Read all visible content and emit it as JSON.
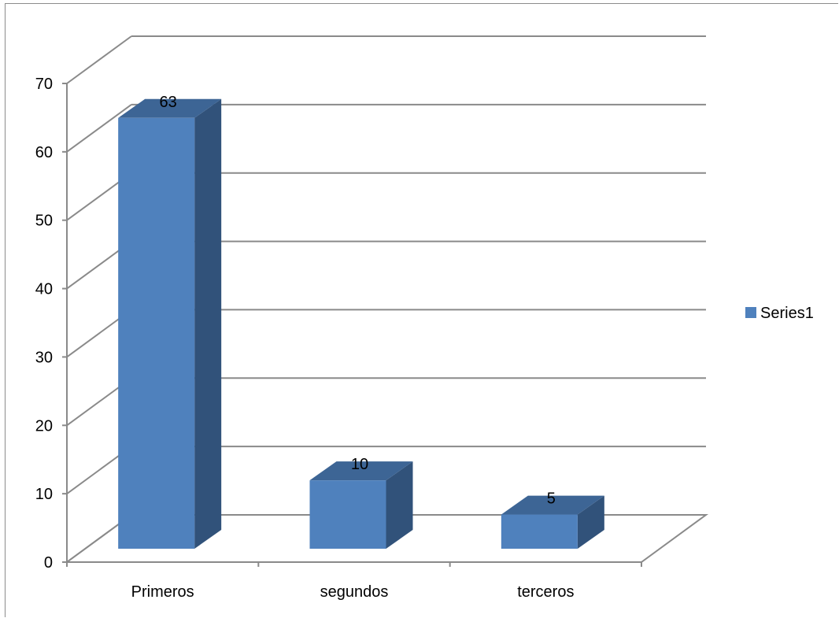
{
  "chart_data": {
    "type": "bar",
    "categories": [
      "Primeros",
      "segundos",
      "terceros"
    ],
    "series": [
      {
        "name": "Series1",
        "values": [
          63,
          10,
          5
        ]
      }
    ],
    "ylim": [
      0,
      70
    ],
    "yticks": [
      0,
      10,
      20,
      30,
      40,
      50,
      60,
      70
    ],
    "grid": true,
    "legend": "right",
    "colors": {
      "bar_front": "#4f81bd",
      "bar_top": "#3d6595",
      "bar_side": "#31527a",
      "grid": "#8a8a8a"
    }
  }
}
